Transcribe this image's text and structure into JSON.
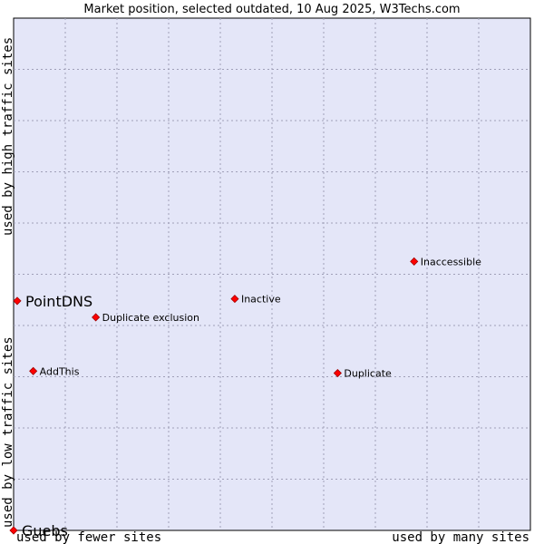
{
  "chart_data": {
    "type": "scatter",
    "title": "Market position, selected outdated, 10 Aug 2025, W3Techs.com",
    "xlabel_low": "used by fewer sites",
    "xlabel_high": "used by many sites",
    "ylabel_low": "used by low traffic sites",
    "ylabel_high": "used by high traffic sites",
    "xlim": [
      0,
      100
    ],
    "ylim": [
      0,
      100
    ],
    "grid": true,
    "colors": {
      "plot_bg": "#e4e6f8",
      "point": "#ff0000",
      "point_edge": "#a00000",
      "frame": "#000000"
    },
    "points": [
      {
        "name": "Inaccessible",
        "x": 77.5,
        "y": 52.5,
        "highlight": false
      },
      {
        "name": "Inactive",
        "x": 42.8,
        "y": 45.2,
        "highlight": false
      },
      {
        "name": "PointDNS",
        "x": 0.7,
        "y": 44.8,
        "highlight": true
      },
      {
        "name": "Duplicate exclusion",
        "x": 15.9,
        "y": 41.6,
        "highlight": false
      },
      {
        "name": "AddThis",
        "x": 3.8,
        "y": 31.1,
        "highlight": false
      },
      {
        "name": "Duplicate",
        "x": 62.7,
        "y": 30.7,
        "highlight": false
      },
      {
        "name": "Guebs",
        "x": 0.0,
        "y": 0.0,
        "highlight": true
      }
    ]
  }
}
